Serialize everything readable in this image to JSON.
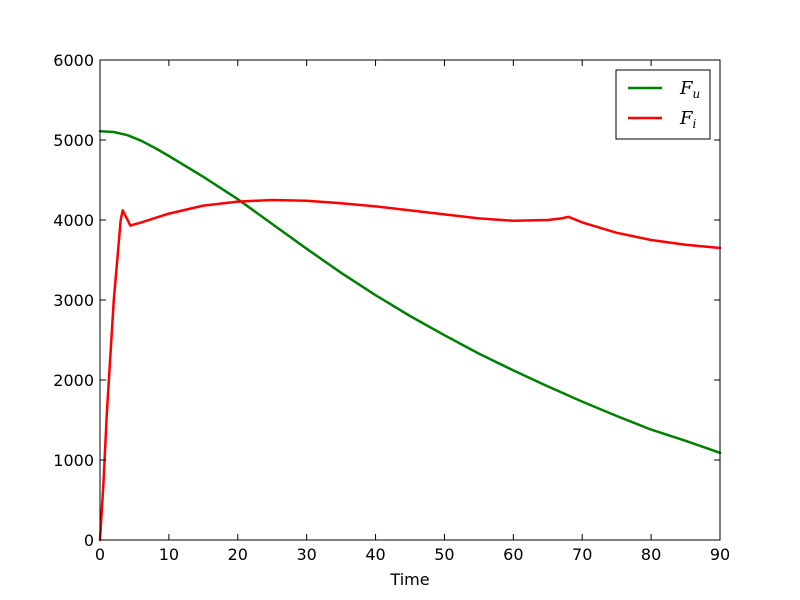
{
  "chart_data": {
    "type": "line",
    "title": "",
    "xlabel": "Time",
    "ylabel": "",
    "xlim": [
      0,
      90
    ],
    "ylim": [
      0,
      6000
    ],
    "xticks": [
      0,
      10,
      20,
      30,
      40,
      50,
      60,
      70,
      80,
      90
    ],
    "yticks": [
      0,
      1000,
      2000,
      3000,
      4000,
      5000,
      6000
    ],
    "xtick_labels": [
      "0",
      "10",
      "20",
      "30",
      "40",
      "50",
      "60",
      "70",
      "80",
      "90"
    ],
    "ytick_labels": [
      "0",
      "1000",
      "2000",
      "3000",
      "4000",
      "5000",
      "6000"
    ],
    "grid": false,
    "legend": {
      "position": "top-right",
      "entries": [
        {
          "base": "F",
          "sub": "u",
          "color": "#008000"
        },
        {
          "base": "F",
          "sub": "i",
          "color": "#ff0000"
        }
      ]
    },
    "series": [
      {
        "color": "#008000",
        "x": [
          0,
          2,
          4,
          6,
          8,
          10,
          15,
          20,
          25,
          30,
          35,
          40,
          45,
          50,
          55,
          60,
          65,
          70,
          75,
          80,
          85,
          90
        ],
        "y": [
          5110,
          5100,
          5060,
          4990,
          4900,
          4800,
          4540,
          4260,
          3950,
          3640,
          3340,
          3060,
          2800,
          2560,
          2330,
          2120,
          1920,
          1730,
          1550,
          1380,
          1240,
          1090
        ]
      },
      {
        "color": "#ff0000",
        "x": [
          0,
          0.5,
          1,
          2,
          3,
          3.3,
          4,
          4.4,
          6,
          10,
          15,
          20,
          25,
          30,
          35,
          40,
          45,
          50,
          55,
          60,
          65,
          67,
          68,
          70,
          75,
          80,
          85,
          90
        ],
        "y": [
          0,
          700,
          1600,
          3000,
          4000,
          4120,
          4000,
          3930,
          3970,
          4080,
          4180,
          4230,
          4250,
          4240,
          4210,
          4170,
          4120,
          4070,
          4020,
          3990,
          4000,
          4020,
          4040,
          3970,
          3840,
          3750,
          3690,
          3650
        ]
      }
    ]
  }
}
